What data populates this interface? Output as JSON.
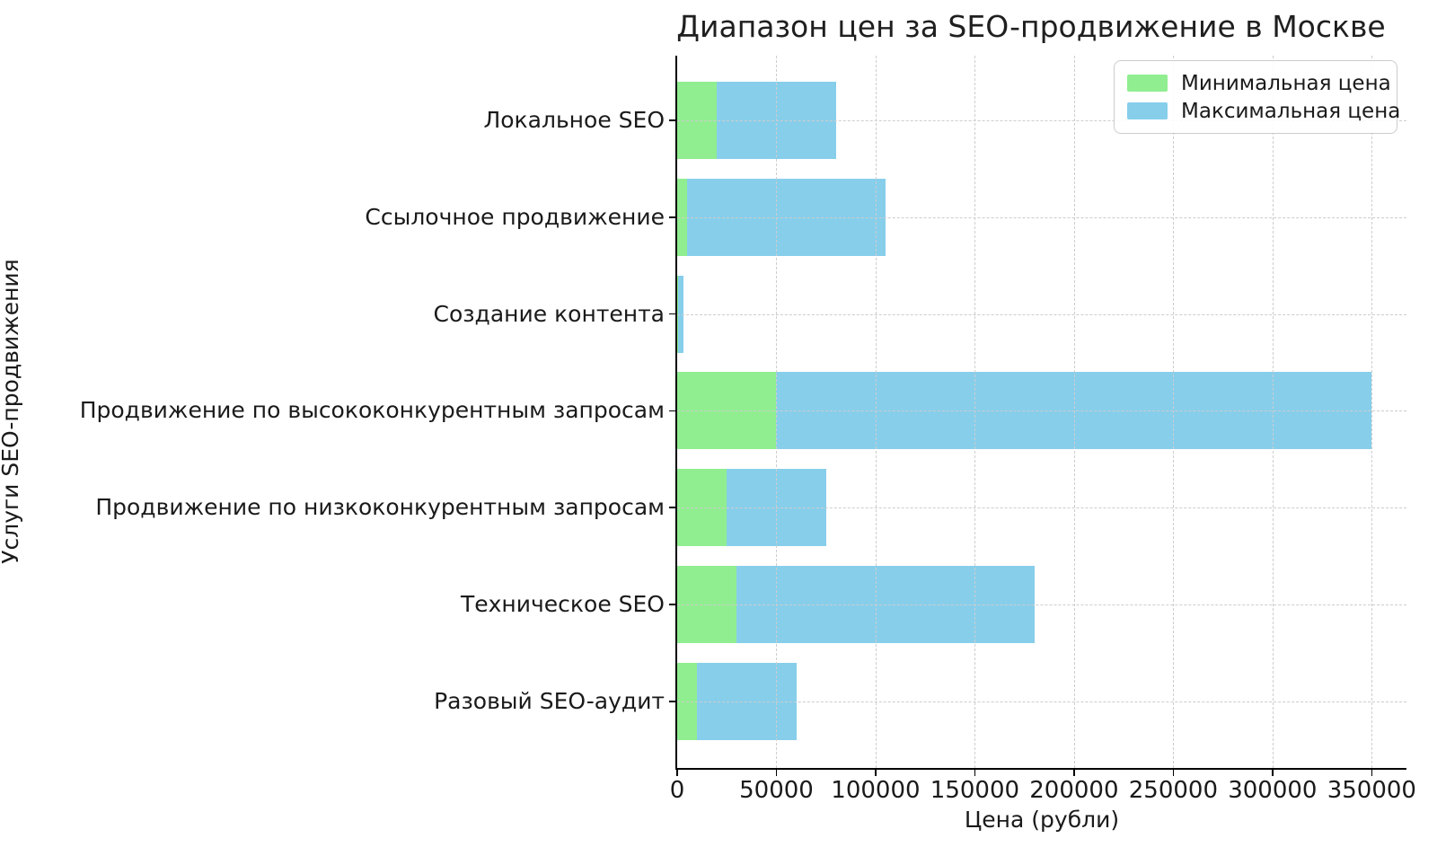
{
  "figure": {
    "background_color": "#ffffff",
    "text_color": "#1a1a1a",
    "axis_color": "#000000",
    "gridline_color": "#cdcdcd"
  },
  "chart_data": {
    "type": "bar",
    "orientation": "horizontal",
    "stacked": true,
    "title": "Диапазон цен за SEO-продвижение в Москве",
    "xlabel": "Цена (рубли)",
    "ylabel": "Услуги SEO-продвижения",
    "categories": [
      "Локальное SEO",
      "Ссылочное продвижение",
      "Создание контента",
      "Продвижение по высококонкурентным запросам",
      "Продвижение по низкоконкурентным запросам",
      "Техническое SEO",
      "Разовый SEO-аудит"
    ],
    "series": [
      {
        "name": "Минимальная цена",
        "color": "#90EE90",
        "values": [
          20000,
          5000,
          500,
          50000,
          25000,
          30000,
          10000
        ]
      },
      {
        "name": "Максимальная цена",
        "color": "#87CEEB",
        "values": [
          60000,
          100000,
          2500,
          300000,
          50000,
          150000,
          50000
        ]
      }
    ],
    "bar_right_edges_rub": [
      80000,
      105000,
      3000,
      350000,
      75000,
      180000,
      60000
    ],
    "x_ticks": [
      0,
      50000,
      100000,
      150000,
      200000,
      250000,
      300000,
      350000
    ],
    "x_tick_labels": [
      "0",
      "50000",
      "100000",
      "150000",
      "200000",
      "250000",
      "300000",
      "350000"
    ],
    "xlim": [
      0,
      367500
    ],
    "grid": {
      "style": "dashed",
      "axes": "both",
      "on_top_of_bars": true
    },
    "legend": {
      "position": "upper right"
    }
  }
}
